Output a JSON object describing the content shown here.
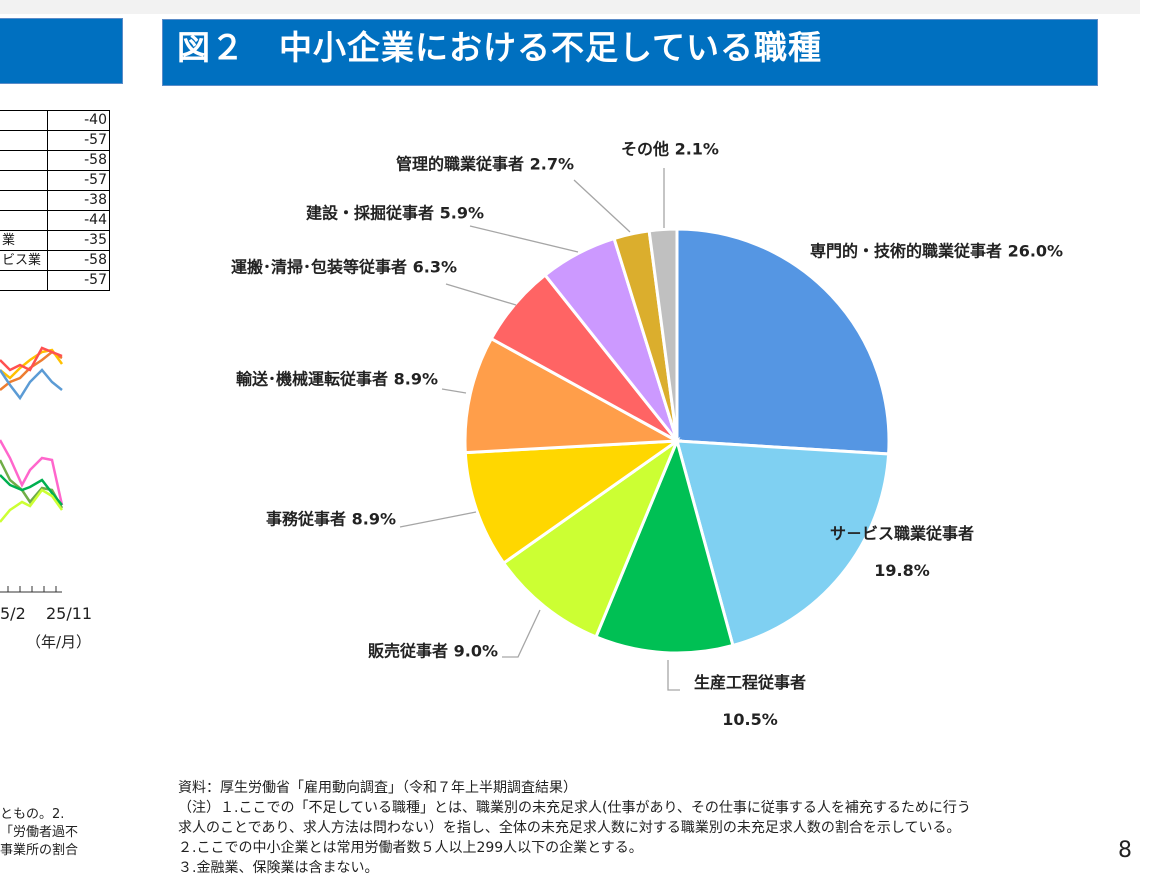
{
  "header": {
    "title": "図２　中小企業における不足している職種"
  },
  "left_table": {
    "rows": [
      {
        "label": "",
        "value": "-40"
      },
      {
        "label": "",
        "value": "-57"
      },
      {
        "label": "",
        "value": "-58"
      },
      {
        "label": "",
        "value": "-57"
      },
      {
        "label": "",
        "value": "-38"
      },
      {
        "label": "",
        "value": "-44"
      },
      {
        "label": "業",
        "value": "-35"
      },
      {
        "label": "ビス業",
        "value": "-58"
      },
      {
        "label": "",
        "value": "-57"
      }
    ]
  },
  "left_chart": {
    "x_ticks": [
      "5/2",
      "25/11"
    ],
    "unit": "（年/月）",
    "colors": [
      "#ed7d31",
      "#ffc000",
      "#5b9bd5",
      "#ff66cc",
      "#70ad47",
      "#00b050",
      "#ccff33",
      "#ff5050"
    ]
  },
  "left_notes": [
    "ともの。2.",
    "「労働者過不",
    "事業所の割合"
  ],
  "chart_data": {
    "type": "pie",
    "title": "図２　中小企業における不足している職種",
    "unit": "%",
    "slices": [
      {
        "label": "専門的・技術的職業従事者",
        "value": 26.0,
        "value_label": "26.0%",
        "color": "#5596e3"
      },
      {
        "label": "サ－ビス職業従事者",
        "value": 19.8,
        "value_label": "19.8%",
        "color": "#7fd0f2"
      },
      {
        "label": "生産工程従事者",
        "value": 10.5,
        "value_label": "10.5%",
        "color": "#00c054"
      },
      {
        "label": "販売従事者",
        "value": 9.0,
        "value_label": "9.0%",
        "color": "#ccff33"
      },
      {
        "label": "事務従事者",
        "value": 8.9,
        "value_label": "8.9%",
        "color": "#ffd700"
      },
      {
        "label": "輸送･機械運転従事者",
        "value": 8.9,
        "value_label": "8.9%",
        "color": "#ff9e4a"
      },
      {
        "label": "運搬･清掃･包装等従事者",
        "value": 6.3,
        "value_label": "6.3%",
        "color": "#ff6464"
      },
      {
        "label": "建設・採掘従事者",
        "value": 5.9,
        "value_label": "5.9%",
        "color": "#cc99ff"
      },
      {
        "label": "管理的職業従事者",
        "value": 2.7,
        "value_label": "2.7%",
        "color": "#dbae2d"
      },
      {
        "label": "その他",
        "value": 2.1,
        "value_label": "2.1%",
        "color": "#c0c0c0"
      }
    ]
  },
  "footer": {
    "lines": [
      "資料：厚生労働省「雇用動向調査」（令和７年上半期調査結果）",
      "（注）１.ここでの「不足している職種」とは、職業別の未充足求人(仕事があり、その仕事に従事する人を補充するために行う",
      "求人のことであり、求人方法は問わない）を指し、全体の未充足求人数に対する職業別の未充足求人数の割合を示している。",
      "２.ここでの中小企業とは常用労働者数５人以上299人以下の企業とする。",
      "３.金融業、保険業は含まない。"
    ]
  },
  "page_number": "8"
}
